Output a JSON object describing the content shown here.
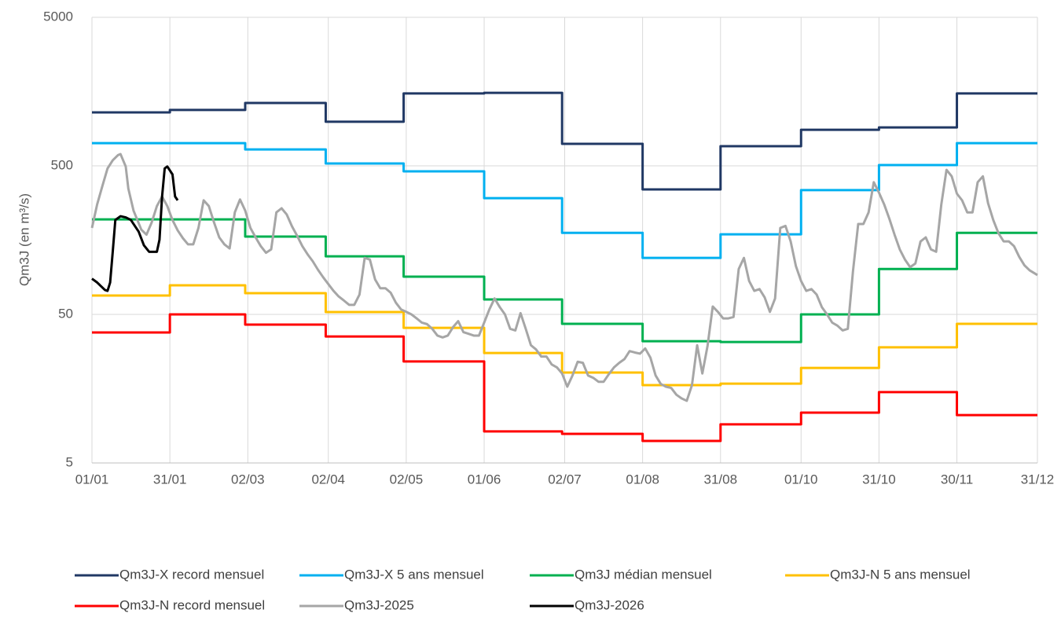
{
  "chart_data": {
    "type": "line",
    "y_label": "Qm3J (en m³/s)",
    "log_y": true,
    "grid": true,
    "xlim": [
      0,
      364
    ],
    "xticks": [
      {
        "value": 0,
        "label": "01/01"
      },
      {
        "value": 30,
        "label": "31/01"
      },
      {
        "value": 60,
        "label": "02/03"
      },
      {
        "value": 91,
        "label": "02/04"
      },
      {
        "value": 121,
        "label": "02/05"
      },
      {
        "value": 151,
        "label": "01/06"
      },
      {
        "value": 182,
        "label": "02/07"
      },
      {
        "value": 212,
        "label": "01/08"
      },
      {
        "value": 242,
        "label": "31/08"
      },
      {
        "value": 273,
        "label": "01/10"
      },
      {
        "value": 303,
        "label": "31/10"
      },
      {
        "value": 333,
        "label": "30/11"
      },
      {
        "value": 364,
        "label": "31/12"
      }
    ],
    "ylim": [
      5,
      5000
    ],
    "yticks": [
      5,
      50,
      500,
      5000
    ],
    "legend": "bottom",
    "series": [
      {
        "name": "Qm3J-X record mensuel",
        "color": "#203864",
        "step": true,
        "x": [
          0,
          30,
          59,
          90,
          120,
          151,
          181,
          212,
          242,
          273,
          303,
          333
        ],
        "values": [
          1145,
          1190,
          1325,
          990,
          1535,
          1550,
          703,
          347,
          678,
          875,
          907,
          1535
        ]
      },
      {
        "name": "Qm3J-X 5 ans mensuel",
        "color": "#00b0f0",
        "step": true,
        "x": [
          0,
          30,
          59,
          90,
          120,
          151,
          181,
          212,
          242,
          273,
          303,
          333
        ],
        "values": [
          711,
          711,
          645,
          519,
          459,
          303,
          177,
          120,
          173,
          343,
          506,
          711
        ]
      },
      {
        "name": "Qm3J médian mensuel",
        "color": "#00b050",
        "step": true,
        "x": [
          0,
          30,
          59,
          90,
          120,
          151,
          181,
          212,
          242,
          273,
          303,
          333
        ],
        "values": [
          218,
          218,
          167,
          123,
          89.7,
          63,
          43.2,
          33,
          32.6,
          50,
          101,
          177
        ]
      },
      {
        "name": "Qm3J-N 5 ans mensuel",
        "color": "#ffc000",
        "step": true,
        "x": [
          0,
          30,
          59,
          90,
          120,
          151,
          181,
          212,
          242,
          273,
          303,
          333
        ],
        "values": [
          67,
          78.5,
          69.5,
          51.9,
          40.6,
          27.5,
          20.3,
          16.7,
          17.1,
          21.8,
          30,
          43.2
        ]
      },
      {
        "name": "Qm3J-N record mensuel",
        "color": "#ff0000",
        "step": true,
        "x": [
          0,
          30,
          59,
          90,
          120,
          151,
          181,
          212,
          242,
          273,
          303,
          333
        ],
        "values": [
          37.8,
          50,
          42.7,
          35.5,
          24.1,
          8.15,
          7.85,
          7.03,
          9.1,
          10.9,
          15,
          10.5
        ]
      },
      {
        "name": "Qm3J-2025",
        "color": "#a6a6a6",
        "x": [
          0,
          2,
          4,
          6,
          8,
          10,
          11,
          13,
          14,
          16,
          19,
          21,
          23,
          25,
          27,
          29,
          31,
          33,
          35,
          37,
          39,
          41,
          43,
          45,
          47,
          49,
          51,
          53,
          55,
          57,
          59,
          61,
          63,
          65,
          67,
          69,
          71,
          73,
          75,
          77,
          79,
          81,
          83,
          85,
          87,
          89,
          91,
          93,
          95,
          97,
          99,
          101,
          103,
          105,
          107,
          109,
          111,
          113,
          115,
          117,
          119,
          121,
          123,
          125,
          127,
          129,
          131,
          133,
          135,
          137,
          139,
          141,
          143,
          145,
          147,
          149,
          151,
          153,
          155,
          157,
          159,
          161,
          163,
          165,
          167,
          169,
          171,
          173,
          175,
          177,
          179,
          181,
          183,
          185,
          187,
          189,
          191,
          193,
          195,
          197,
          199,
          201,
          203,
          205,
          207,
          209,
          211,
          213,
          215,
          217,
          219,
          221,
          223,
          225,
          227,
          229,
          231,
          233,
          235,
          237,
          239,
          241,
          243,
          245,
          247,
          249,
          251,
          253,
          255,
          257,
          259,
          261,
          263,
          265,
          267,
          269,
          271,
          273,
          275,
          277,
          279,
          281,
          283,
          285,
          287,
          289,
          291,
          293,
          295,
          297,
          299,
          301,
          303,
          305,
          307,
          309,
          311,
          313,
          315,
          317,
          319,
          321,
          323,
          325,
          327,
          329,
          331,
          333,
          335,
          337,
          339,
          341,
          343,
          345,
          347,
          349,
          351,
          353,
          355,
          357,
          359,
          361,
          364
        ],
        "values": [
          191,
          275,
          365,
          480,
          545,
          590,
          600,
          495,
          352,
          250,
          186,
          172,
          208,
          268,
          311,
          268,
          216,
          184,
          163,
          148,
          148,
          191,
          293,
          268,
          208,
          165,
          148,
          139,
          243,
          297,
          250,
          191,
          165,
          144,
          130,
          137,
          243,
          259,
          235,
          196,
          169,
          144,
          127,
          114,
          100,
          89,
          80,
          72,
          66,
          62,
          58,
          58,
          68,
          120,
          117,
          86,
          75,
          75,
          70,
          60,
          54,
          52,
          50,
          47,
          44,
          43,
          40,
          36,
          35,
          36,
          41,
          45,
          38,
          37,
          36,
          36,
          44,
          54,
          64,
          56,
          50,
          40,
          39,
          51,
          40,
          31,
          29,
          26,
          26,
          23,
          22,
          20,
          16.3,
          19.4,
          24,
          23.6,
          19.4,
          18.7,
          17.6,
          17.6,
          19.8,
          22,
          23.6,
          25,
          28.3,
          27.7,
          27.2,
          29.5,
          25.6,
          19.4,
          17,
          16.3,
          16,
          14.4,
          13.6,
          13.1,
          16.7,
          31,
          20,
          30.7,
          56.5,
          52,
          47,
          47,
          48,
          101,
          120,
          84,
          72,
          74,
          65,
          52,
          64,
          191,
          197,
          155,
          106,
          84,
          72,
          74,
          68,
          56,
          50,
          44,
          42,
          39,
          40,
          98,
          203,
          203,
          243,
          388,
          330,
          275,
          220,
          172,
          137,
          117,
          104,
          110,
          155,
          165,
          137,
          132,
          275,
          470,
          425,
          325,
          293,
          243,
          243,
          388,
          425,
          280,
          216,
          176,
          155,
          155,
          144,
          122,
          107,
          99,
          92
        ]
      },
      {
        "name": "Qm3J-2026",
        "color": "#000000",
        "x": [
          0,
          2,
          5,
          6,
          7,
          8,
          9,
          11,
          13,
          15,
          18,
          20,
          22,
          25,
          26,
          27,
          28,
          29,
          31,
          32,
          33
        ],
        "values": [
          87,
          82,
          73,
          72,
          82,
          132,
          216,
          229,
          225,
          216,
          180,
          146,
          132,
          132,
          159,
          311,
          480,
          495,
          438,
          311,
          293
        ]
      }
    ]
  }
}
